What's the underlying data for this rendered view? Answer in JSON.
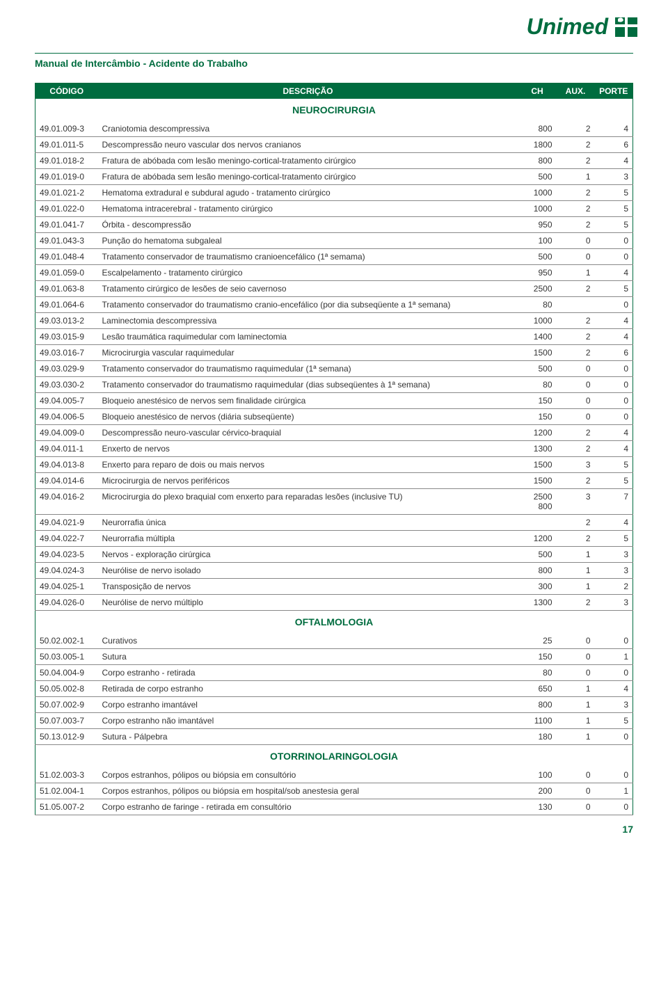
{
  "brand": "Unimed",
  "doc_title": "Manual de Intercâmbio - Acidente do Trabalho",
  "page_number": "17",
  "columns": {
    "codigo": "CÓDIGO",
    "descricao": "DESCRIÇÃO",
    "ch": "CH",
    "aux": "AUX.",
    "porte": "PORTE"
  },
  "logo_colors": {
    "green": "#006c3f"
  },
  "sections": [
    {
      "title": "NEUROCIRURGIA",
      "rows": [
        {
          "c": "49.01.009-3",
          "d": "Craniotomia descompressiva",
          "ch": "800",
          "a": "2",
          "p": "4"
        },
        {
          "c": "49.01.011-5",
          "d": "Descompressão neuro vascular dos nervos cranianos",
          "ch": "1800",
          "a": "2",
          "p": "6"
        },
        {
          "c": "49.01.018-2",
          "d": "Fratura de abóbada com lesão meningo-cortical-tratamento cirúrgico",
          "ch": "800",
          "a": "2",
          "p": "4"
        },
        {
          "c": "49.01.019-0",
          "d": "Fratura de abóbada sem lesão meningo-cortical-tratamento cirúrgico",
          "ch": "500",
          "a": "1",
          "p": "3"
        },
        {
          "c": "49.01.021-2",
          "d": "Hematoma extradural e subdural agudo - tratamento cirúrgico",
          "ch": "1000",
          "a": "2",
          "p": "5"
        },
        {
          "c": "49.01.022-0",
          "d": "Hematoma intracerebral - tratamento cirúrgico",
          "ch": "1000",
          "a": "2",
          "p": "5"
        },
        {
          "c": "49.01.041-7",
          "d": "Órbita - descompressão",
          "ch": "950",
          "a": "2",
          "p": "5"
        },
        {
          "c": "49.01.043-3",
          "d": "Punção do hematoma subgaleal",
          "ch": "100",
          "a": "0",
          "p": "0"
        },
        {
          "c": "49.01.048-4",
          "d": "Tratamento conservador de traumatismo cranioencefálico (1ª semama)",
          "ch": "500",
          "a": "0",
          "p": "0"
        },
        {
          "c": "49.01.059-0",
          "d": "Escalpelamento - tratamento cirúrgico",
          "ch": "950",
          "a": "1",
          "p": "4"
        },
        {
          "c": "49.01.063-8",
          "d": "Tratamento cirúrgico de lesões de seio cavernoso",
          "ch": "2500",
          "a": "2",
          "p": "5"
        },
        {
          "c": "49.01.064-6",
          "d": "Tratamento conservador do traumatismo cranio-encefálico (por dia subseqüente a 1ª semana)",
          "ch": "80",
          "a": "",
          "p": "0"
        },
        {
          "c": "49.03.013-2",
          "d": "Laminectomia descompressiva",
          "ch": "1000",
          "a": "2",
          "p": "4"
        },
        {
          "c": "49.03.015-9",
          "d": "Lesão traumática raquimedular com laminectomia",
          "ch": "1400",
          "a": "2",
          "p": "4"
        },
        {
          "c": "49.03.016-7",
          "d": "Microcirurgia vascular raquimedular",
          "ch": "1500",
          "a": "2",
          "p": "6"
        },
        {
          "c": "49.03.029-9",
          "d": "Tratamento conservador do traumatismo raquimedular (1ª semana)",
          "ch": "500",
          "a": "0",
          "p": "0"
        },
        {
          "c": "49.03.030-2",
          "d": "Tratamento conservador do traumatismo raquimedular (dias subseqüentes à 1ª semana)",
          "ch": "80",
          "a": "0",
          "p": "0"
        },
        {
          "c": "49.04.005-7",
          "d": "Bloqueio anestésico de nervos sem finalidade cirúrgica",
          "ch": "150",
          "a": "0",
          "p": "0"
        },
        {
          "c": "49.04.006-5",
          "d": "Bloqueio anestésico de nervos (diária subseqüente)",
          "ch": "150",
          "a": "0",
          "p": "0"
        },
        {
          "c": "49.04.009-0",
          "d": "Descompressão neuro-vascular cérvico-braquial",
          "ch": "1200",
          "a": "2",
          "p": "4"
        },
        {
          "c": "49.04.011-1",
          "d": "Enxerto de nervos",
          "ch": "1300",
          "a": "2",
          "p": "4"
        },
        {
          "c": "49.04.013-8",
          "d": "Enxerto para reparo de dois ou mais nervos",
          "ch": "1500",
          "a": "3",
          "p": "5"
        },
        {
          "c": "49.04.014-6",
          "d": "Microcirurgia de nervos periféricos",
          "ch": "1500",
          "a": "2",
          "p": "5"
        },
        {
          "c": "49.04.016-2",
          "d": "Microcirurgia do plexo braquial com enxerto para reparadas lesões (inclusive TU)",
          "ch": "2500 800",
          "a": "3",
          "p": "7"
        },
        {
          "c": "49.04.021-9",
          "d": "Neurorrafia única",
          "ch": "",
          "a": "2",
          "p": "4"
        },
        {
          "c": "49.04.022-7",
          "d": "Neurorrafia múltipla",
          "ch": "1200",
          "a": "2",
          "p": "5"
        },
        {
          "c": "49.04.023-5",
          "d": "Nervos - exploração cirúrgica",
          "ch": "500",
          "a": "1",
          "p": "3"
        },
        {
          "c": "49.04.024-3",
          "d": "Neurólise de nervo isolado",
          "ch": "800",
          "a": "1",
          "p": "3"
        },
        {
          "c": "49.04.025-1",
          "d": "Transposição de nervos",
          "ch": "300",
          "a": "1",
          "p": "2"
        },
        {
          "c": "49.04.026-0",
          "d": "Neurólise de nervo múltiplo",
          "ch": "1300",
          "a": "2",
          "p": "3"
        }
      ]
    },
    {
      "title": "OFTALMOLOGIA",
      "rows": [
        {
          "c": "50.02.002-1",
          "d": "Curativos",
          "ch": "25",
          "a": "0",
          "p": "0"
        },
        {
          "c": "50.03.005-1",
          "d": "Sutura",
          "ch": "150",
          "a": "0",
          "p": "1"
        },
        {
          "c": "50.04.004-9",
          "d": "Corpo estranho - retirada",
          "ch": "80",
          "a": "0",
          "p": "0"
        },
        {
          "c": "50.05.002-8",
          "d": "Retirada de corpo estranho",
          "ch": "650",
          "a": "1",
          "p": "4"
        },
        {
          "c": "50.07.002-9",
          "d": "Corpo estranho imantável",
          "ch": "800",
          "a": "1",
          "p": "3"
        },
        {
          "c": "50.07.003-7",
          "d": "Corpo estranho não imantável",
          "ch": "1100",
          "a": "1",
          "p": "5"
        },
        {
          "c": "50.13.012-9",
          "d": "Sutura - Pálpebra",
          "ch": "180",
          "a": "1",
          "p": "0"
        }
      ]
    },
    {
      "title": "OTORRINOLARINGOLOGIA",
      "rows": [
        {
          "c": "51.02.003-3",
          "d": "Corpos estranhos, pólipos ou biópsia em consultório",
          "ch": "100",
          "a": "0",
          "p": "0"
        },
        {
          "c": "51.02.004-1",
          "d": "Corpos estranhos, pólipos ou biópsia em hospital/sob anestesia geral",
          "ch": "200",
          "a": "0",
          "p": "1"
        },
        {
          "c": "51.05.007-2",
          "d": "Corpo estranho de faringe - retirada em consultório",
          "ch": "130",
          "a": "0",
          "p": "0"
        }
      ]
    }
  ]
}
